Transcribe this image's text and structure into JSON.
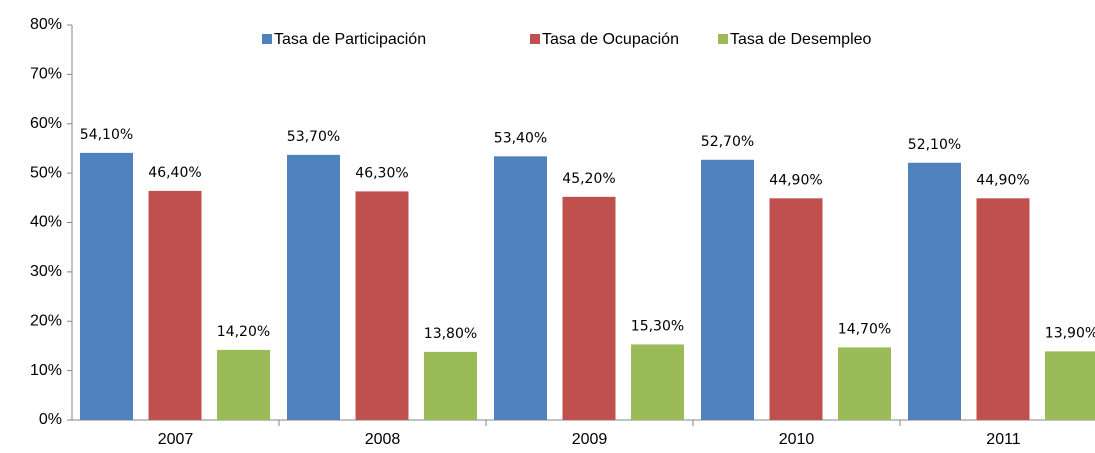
{
  "chart_data": {
    "type": "bar",
    "categories": [
      "2007",
      "2008",
      "2009",
      "2010",
      "2011"
    ],
    "series": [
      {
        "name": "Tasa de Participación",
        "color": "#4f81bd",
        "values": [
          54.1,
          53.7,
          53.4,
          52.7,
          52.1
        ],
        "value_labels": [
          "54,10%",
          "53,70%",
          "53,40%",
          "52,70%",
          "52,10%"
        ]
      },
      {
        "name": "Tasa de Ocupación",
        "color": "#c0504d",
        "values": [
          46.4,
          46.3,
          45.2,
          44.9,
          44.9
        ],
        "value_labels": [
          "46,40%",
          "46,30%",
          "45,20%",
          "44,90%",
          "44,90%"
        ]
      },
      {
        "name": "Tasa de Desempleo",
        "color": "#9bbb59",
        "values": [
          14.2,
          13.8,
          15.3,
          14.7,
          13.9
        ],
        "value_labels": [
          "14,20%",
          "13,80%",
          "15,30%",
          "14,70%",
          "13,90%"
        ]
      }
    ],
    "ylim": [
      0,
      80
    ],
    "yticks": [
      {
        "value": 0,
        "label": "0%"
      },
      {
        "value": 10,
        "label": "10%"
      },
      {
        "value": 20,
        "label": "20%"
      },
      {
        "value": 30,
        "label": "30%"
      },
      {
        "value": 40,
        "label": "40%"
      },
      {
        "value": 50,
        "label": "50%"
      },
      {
        "value": 60,
        "label": "60%"
      },
      {
        "value": 70,
        "label": "70%"
      },
      {
        "value": 80,
        "label": "80%"
      }
    ],
    "legend": "top"
  }
}
